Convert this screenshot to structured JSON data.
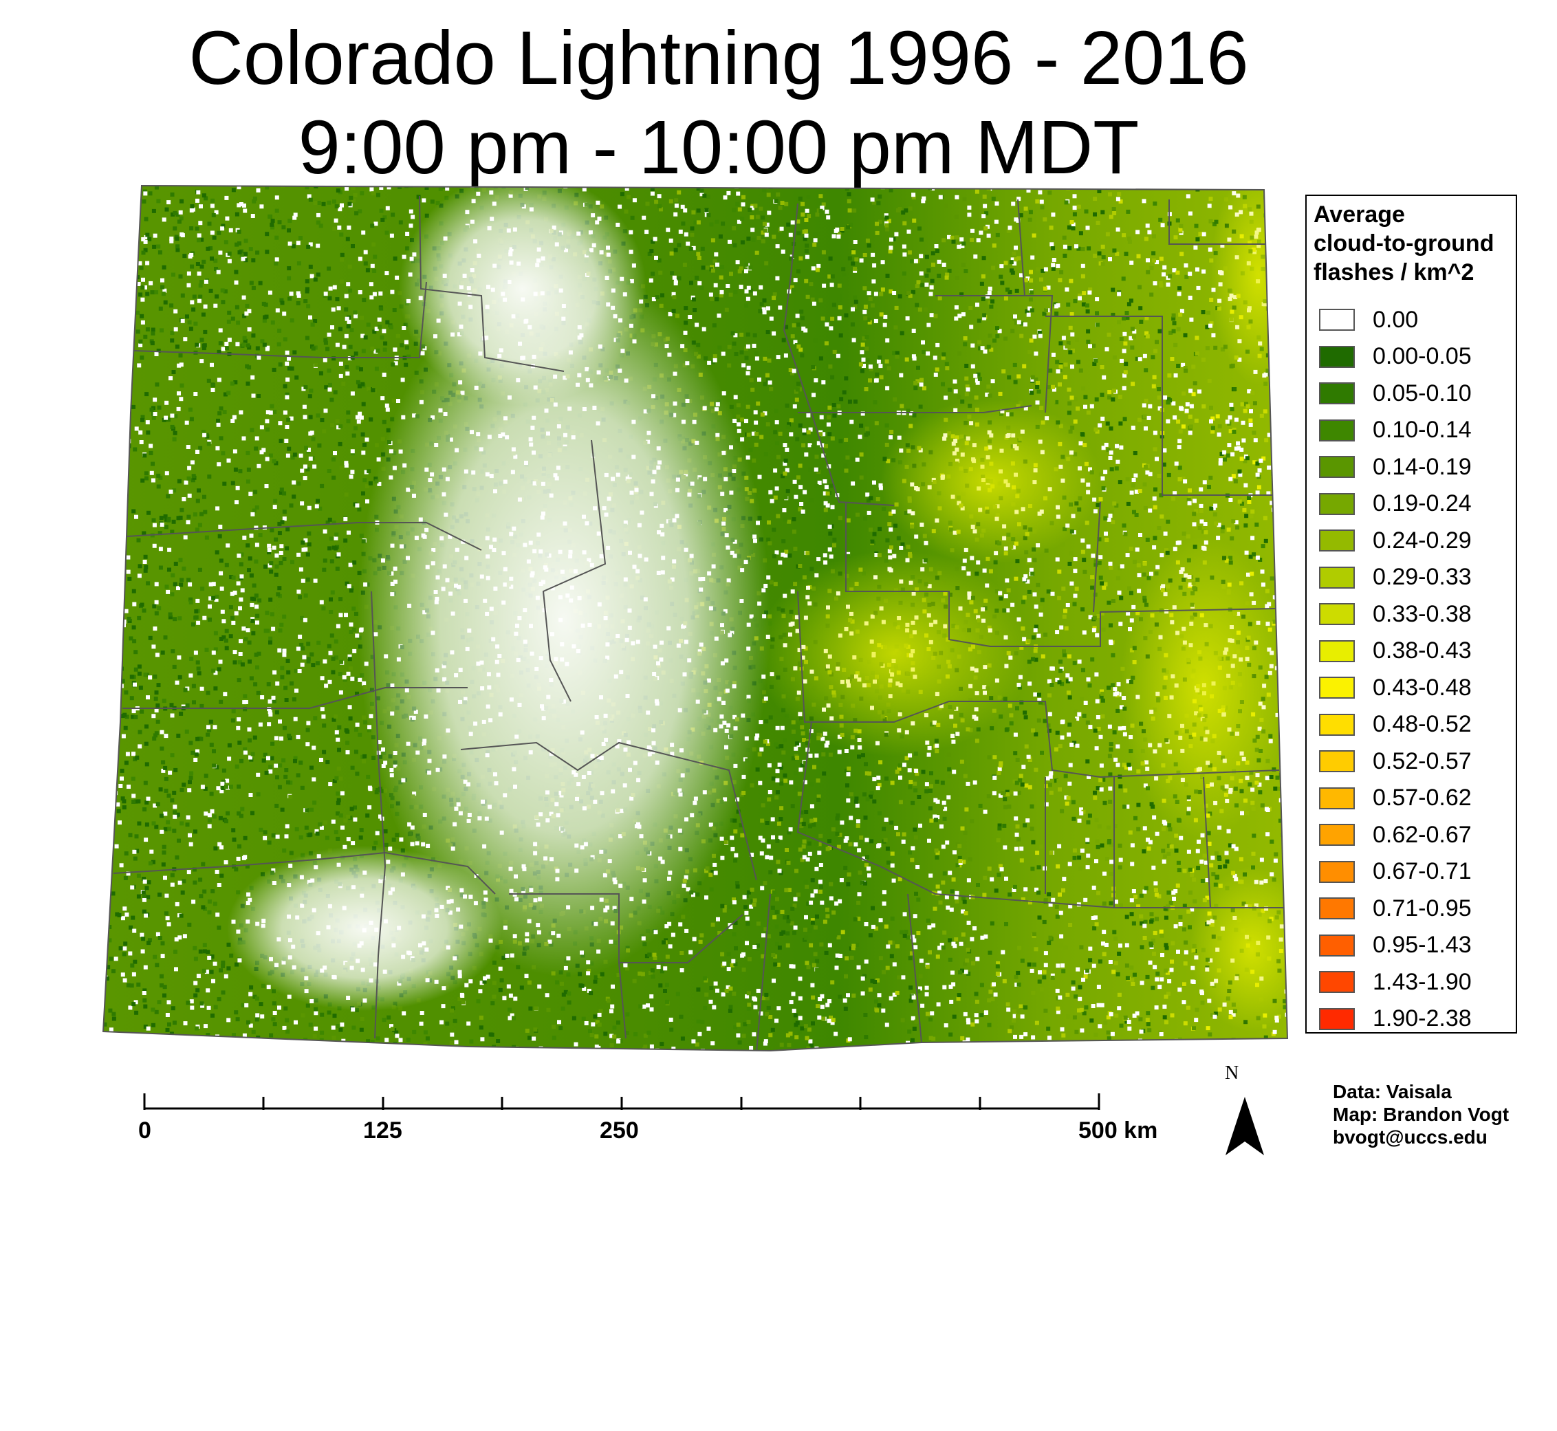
{
  "title": {
    "line1": "Colorado Lightning 1996 - 2016",
    "line2": "9:00 pm - 10:00 pm MDT"
  },
  "legend": {
    "title_lines": [
      "Average",
      "cloud-to-ground",
      "flashes / km^2"
    ],
    "classes": [
      {
        "label": "0.00",
        "color": "#ffffff"
      },
      {
        "label": "0.00-0.05",
        "color": "#1f6b00"
      },
      {
        "label": "0.05-0.10",
        "color": "#2f7a00"
      },
      {
        "label": "0.10-0.14",
        "color": "#3e8700"
      },
      {
        "label": "0.14-0.19",
        "color": "#5a9600"
      },
      {
        "label": "0.19-0.24",
        "color": "#76a800"
      },
      {
        "label": "0.24-0.29",
        "color": "#94ba00"
      },
      {
        "label": "0.29-0.33",
        "color": "#b0cc00"
      },
      {
        "label": "0.33-0.38",
        "color": "#cddc00"
      },
      {
        "label": "0.38-0.43",
        "color": "#e8ee00"
      },
      {
        "label": "0.43-0.48",
        "color": "#fbf200"
      },
      {
        "label": "0.48-0.52",
        "color": "#ffde00"
      },
      {
        "label": "0.52-0.57",
        "color": "#ffcc00"
      },
      {
        "label": "0.57-0.62",
        "color": "#ffb800"
      },
      {
        "label": "0.62-0.67",
        "color": "#ffa300"
      },
      {
        "label": "0.67-0.71",
        "color": "#ff8e00"
      },
      {
        "label": "0.71-0.95",
        "color": "#ff7800"
      },
      {
        "label": "0.95-1.43",
        "color": "#ff5f00"
      },
      {
        "label": "1.43-1.90",
        "color": "#ff4700"
      },
      {
        "label": "1.90-2.38",
        "color": "#ff2a00"
      }
    ]
  },
  "scale_bar": {
    "labels": [
      "0",
      "125",
      "250",
      "500 km"
    ]
  },
  "north_arrow": {
    "letter": "N",
    "icon": "north-arrow-icon"
  },
  "credits": {
    "data": "Data: Vaisala",
    "map": "Map: Brandon Vogt",
    "email": "bvogt@uccs.edu"
  },
  "colors": {
    "county_lines": "#555555",
    "background": "#ffffff"
  }
}
